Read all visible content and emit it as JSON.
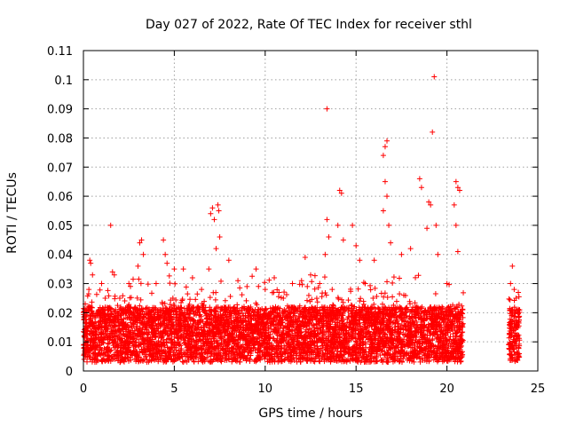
{
  "chart_data": {
    "type": "scatter",
    "title": "Day 027 of 2022, Rate Of TEC Index for receiver sthl",
    "xlabel": "GPS time / hours",
    "ylabel": "ROTI / TECUs",
    "xlim": [
      0,
      25
    ],
    "ylim": [
      0,
      0.11
    ],
    "xticks": [
      0,
      5,
      10,
      15,
      20,
      25
    ],
    "xtick_labels": [
      "0",
      "5",
      "10",
      "15",
      "20",
      "25"
    ],
    "yticks": [
      0,
      0.01,
      0.02,
      0.03,
      0.04,
      0.05,
      0.06,
      0.07,
      0.08,
      0.09,
      0.1,
      0.11
    ],
    "ytick_labels": [
      "0",
      "0.01",
      "0.02",
      "0.03",
      "0.04",
      "0.05",
      "0.06",
      "0.07",
      "0.08",
      "0.09",
      "0.1",
      "0.11"
    ],
    "grid": true,
    "marker": "+",
    "color": "#ff0000",
    "data_coverage_hours": [
      [
        0,
        20.9
      ],
      [
        23.4,
        24.0
      ]
    ],
    "series": [
      {
        "points": [
          [
            0.1,
            0.023
          ],
          [
            0.2,
            0.02
          ],
          [
            0.3,
            0.028
          ],
          [
            0.35,
            0.038
          ],
          [
            0.4,
            0.037
          ],
          [
            0.5,
            0.033
          ],
          [
            1.0,
            0.03
          ],
          [
            1.2,
            0.025
          ],
          [
            1.5,
            0.05
          ],
          [
            1.6,
            0.034
          ],
          [
            1.7,
            0.033
          ],
          [
            2.0,
            0.025
          ],
          [
            2.5,
            0.03
          ],
          [
            3.1,
            0.044
          ],
          [
            3.2,
            0.045
          ],
          [
            3.0,
            0.036
          ],
          [
            3.3,
            0.04
          ],
          [
            4.0,
            0.03
          ],
          [
            4.4,
            0.045
          ],
          [
            4.5,
            0.04
          ],
          [
            4.6,
            0.037
          ],
          [
            5.0,
            0.035
          ],
          [
            5.5,
            0.035
          ],
          [
            6.0,
            0.032
          ],
          [
            6.5,
            0.028
          ],
          [
            6.9,
            0.035
          ],
          [
            7.0,
            0.054
          ],
          [
            7.1,
            0.056
          ],
          [
            7.2,
            0.052
          ],
          [
            7.4,
            0.057
          ],
          [
            7.45,
            0.055
          ],
          [
            7.5,
            0.046
          ],
          [
            7.3,
            0.042
          ],
          [
            8.0,
            0.038
          ],
          [
            8.5,
            0.031
          ],
          [
            9.0,
            0.029
          ],
          [
            9.5,
            0.035
          ],
          [
            10.0,
            0.028
          ],
          [
            10.5,
            0.032
          ],
          [
            11.0,
            0.025
          ],
          [
            11.5,
            0.03
          ],
          [
            12.0,
            0.031
          ],
          [
            12.2,
            0.039
          ],
          [
            12.5,
            0.033
          ],
          [
            13.0,
            0.03
          ],
          [
            13.4,
            0.09
          ],
          [
            13.4,
            0.052
          ],
          [
            13.5,
            0.046
          ],
          [
            13.3,
            0.04
          ],
          [
            14.0,
            0.05
          ],
          [
            14.1,
            0.062
          ],
          [
            14.2,
            0.061
          ],
          [
            14.3,
            0.045
          ],
          [
            14.8,
            0.05
          ],
          [
            15.0,
            0.043
          ],
          [
            15.2,
            0.038
          ],
          [
            15.5,
            0.03
          ],
          [
            16.0,
            0.038
          ],
          [
            16.5,
            0.074
          ],
          [
            16.6,
            0.077
          ],
          [
            16.7,
            0.079
          ],
          [
            16.6,
            0.065
          ],
          [
            16.7,
            0.06
          ],
          [
            16.5,
            0.055
          ],
          [
            16.8,
            0.05
          ],
          [
            16.9,
            0.044
          ],
          [
            17.5,
            0.04
          ],
          [
            18.0,
            0.042
          ],
          [
            18.5,
            0.066
          ],
          [
            18.6,
            0.063
          ],
          [
            18.9,
            0.049
          ],
          [
            19.0,
            0.058
          ],
          [
            19.1,
            0.057
          ],
          [
            19.2,
            0.082
          ],
          [
            19.3,
            0.101
          ],
          [
            19.4,
            0.05
          ],
          [
            19.5,
            0.04
          ],
          [
            20.0,
            0.03
          ],
          [
            20.4,
            0.057
          ],
          [
            20.5,
            0.065
          ],
          [
            20.6,
            0.063
          ],
          [
            20.7,
            0.062
          ],
          [
            20.5,
            0.05
          ],
          [
            20.6,
            0.041
          ],
          [
            23.6,
            0.036
          ],
          [
            23.5,
            0.03
          ],
          [
            23.7,
            0.028
          ],
          [
            23.8,
            0.025
          ],
          [
            23.9,
            0.02
          ]
        ]
      }
    ]
  }
}
